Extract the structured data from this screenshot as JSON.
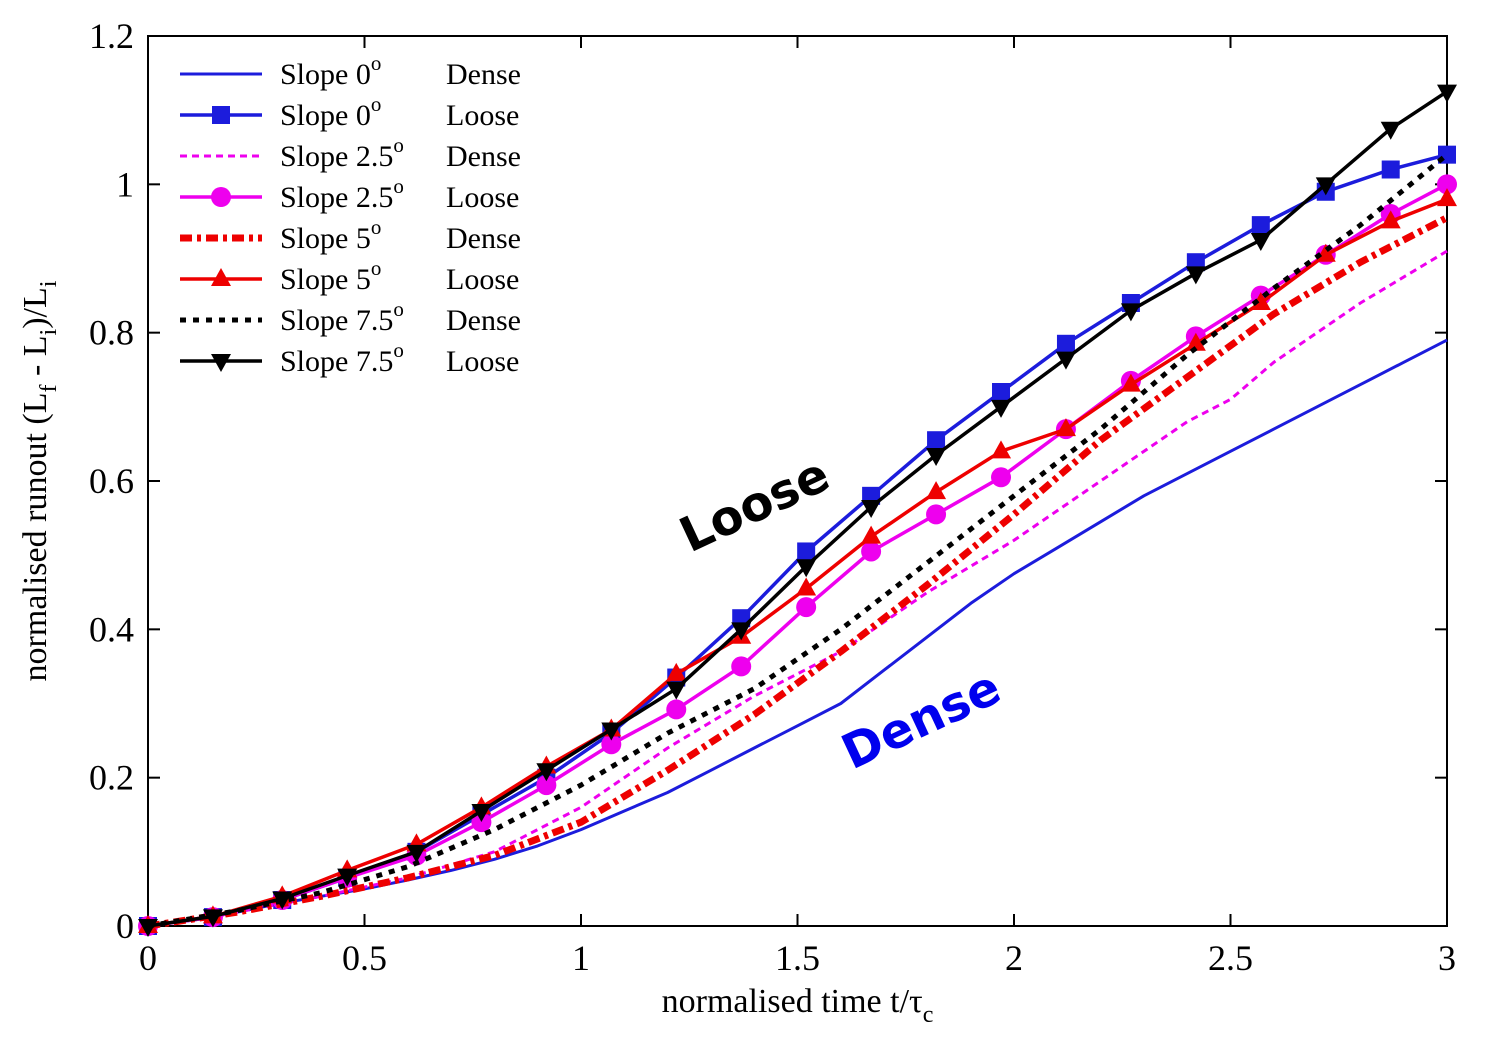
{
  "chart_data": {
    "type": "line",
    "xlabel": "normalised time t/τc",
    "ylabel": "normalised runout (Lf - Li)/Li",
    "xlim": [
      0,
      3
    ],
    "ylim": [
      0,
      1.2
    ],
    "x_ticks": [
      "0",
      "0.5",
      "1",
      "1.5",
      "2",
      "2.5",
      "3"
    ],
    "y_ticks": [
      "0",
      "0.2",
      "0.4",
      "0.6",
      "0.8",
      "1",
      "1.2"
    ],
    "grid": false,
    "legend_position": "top-left",
    "annotations": [
      {
        "text": "Loose",
        "color": "#000000"
      },
      {
        "text": "Dense",
        "color": "#0000ee"
      }
    ],
    "series": [
      {
        "name": "Slope 0o Dense",
        "legend": {
          "main": "Slope 0",
          "sup": "o",
          "suffix": "Dense"
        },
        "color": "#1c1cdc",
        "dash": "solid",
        "marker": "none",
        "width": 3,
        "x": [
          0,
          0.1,
          0.2,
          0.3,
          0.4,
          0.5,
          0.6,
          0.7,
          0.8,
          0.9,
          1.0,
          1.1,
          1.2,
          1.3,
          1.4,
          1.5,
          1.6,
          1.7,
          1.8,
          1.9,
          2.0,
          2.1,
          2.2,
          2.3,
          2.4,
          2.5,
          2.6,
          2.7,
          2.8,
          2.9,
          3.0
        ],
        "y": [
          0,
          0.008,
          0.018,
          0.03,
          0.04,
          0.05,
          0.062,
          0.075,
          0.09,
          0.108,
          0.13,
          0.155,
          0.18,
          0.21,
          0.24,
          0.27,
          0.3,
          0.345,
          0.39,
          0.435,
          0.475,
          0.51,
          0.545,
          0.58,
          0.61,
          0.64,
          0.67,
          0.7,
          0.73,
          0.76,
          0.79
        ]
      },
      {
        "name": "Slope 0o Loose",
        "legend": {
          "main": "Slope 0",
          "sup": "o",
          "suffix": "Loose"
        },
        "color": "#1c1cdc",
        "dash": "solid",
        "marker": "square",
        "width": 3.5,
        "x": [
          0,
          0.15,
          0.31,
          0.46,
          0.62,
          0.77,
          0.92,
          1.07,
          1.22,
          1.37,
          1.52,
          1.67,
          1.82,
          1.97,
          2.12,
          2.27,
          2.42,
          2.57,
          2.72,
          2.87,
          3.0
        ],
        "y": [
          0,
          0.012,
          0.035,
          0.065,
          0.1,
          0.15,
          0.2,
          0.26,
          0.335,
          0.415,
          0.505,
          0.58,
          0.655,
          0.72,
          0.785,
          0.84,
          0.895,
          0.945,
          0.99,
          1.02,
          1.04
        ]
      },
      {
        "name": "Slope 2.5o Dense",
        "legend": {
          "main": "Slope 2.5",
          "sup": "o",
          "suffix": "Dense"
        },
        "color": "#ee00ee",
        "dash": "dotted",
        "marker": "none",
        "width": 3,
        "x": [
          0,
          0.2,
          0.4,
          0.6,
          0.8,
          1.0,
          1.2,
          1.4,
          1.6,
          1.8,
          2.0,
          2.2,
          2.4,
          2.5,
          2.6,
          2.8,
          3.0
        ],
        "y": [
          0,
          0.018,
          0.04,
          0.065,
          0.1,
          0.16,
          0.24,
          0.31,
          0.37,
          0.45,
          0.52,
          0.6,
          0.68,
          0.71,
          0.76,
          0.84,
          0.91
        ]
      },
      {
        "name": "Slope 2.5o Loose",
        "legend": {
          "main": "Slope 2.5",
          "sup": "o",
          "suffix": "Loose"
        },
        "color": "#ee00ee",
        "dash": "solid",
        "marker": "circle",
        "width": 3.5,
        "x": [
          0,
          0.15,
          0.31,
          0.46,
          0.62,
          0.77,
          0.92,
          1.07,
          1.22,
          1.37,
          1.52,
          1.67,
          1.82,
          1.97,
          2.12,
          2.27,
          2.42,
          2.57,
          2.72,
          2.87,
          3.0
        ],
        "y": [
          0,
          0.012,
          0.035,
          0.065,
          0.095,
          0.14,
          0.19,
          0.245,
          0.292,
          0.35,
          0.43,
          0.505,
          0.555,
          0.605,
          0.67,
          0.735,
          0.795,
          0.85,
          0.905,
          0.96,
          1.0
        ]
      },
      {
        "name": "Slope 5o Dense",
        "legend": {
          "main": "Slope 5",
          "sup": "o",
          "suffix": "Dense"
        },
        "color": "#ee0000",
        "dash": "dashdot",
        "marker": "none",
        "width": 7,
        "x": [
          0,
          0.2,
          0.4,
          0.6,
          0.8,
          1.0,
          1.2,
          1.4,
          1.6,
          1.8,
          2.0,
          2.2,
          2.4,
          2.6,
          2.8,
          3.0
        ],
        "y": [
          0,
          0.018,
          0.04,
          0.065,
          0.095,
          0.14,
          0.21,
          0.285,
          0.37,
          0.46,
          0.555,
          0.655,
          0.74,
          0.825,
          0.895,
          0.955
        ]
      },
      {
        "name": "Slope 5o Loose",
        "legend": {
          "main": "Slope 5",
          "sup": "o",
          "suffix": "Loose"
        },
        "color": "#ee0000",
        "dash": "solid",
        "marker": "triangle-up",
        "width": 3.5,
        "x": [
          0,
          0.15,
          0.31,
          0.46,
          0.62,
          0.77,
          0.92,
          1.07,
          1.22,
          1.37,
          1.52,
          1.67,
          1.82,
          1.97,
          2.12,
          2.27,
          2.42,
          2.57,
          2.72,
          2.87,
          3.0
        ],
        "y": [
          0,
          0.013,
          0.04,
          0.075,
          0.11,
          0.16,
          0.215,
          0.265,
          0.34,
          0.39,
          0.455,
          0.525,
          0.585,
          0.64,
          0.67,
          0.73,
          0.785,
          0.84,
          0.905,
          0.95,
          0.98
        ]
      },
      {
        "name": "Slope 7.5o Dense",
        "legend": {
          "main": "Slope 7.5",
          "sup": "o",
          "suffix": "Dense"
        },
        "color": "#000000",
        "dash": "dotted-heavy",
        "marker": "none",
        "width": 5,
        "x": [
          0,
          0.2,
          0.4,
          0.6,
          0.8,
          1.0,
          1.2,
          1.4,
          1.6,
          1.8,
          2.0,
          2.2,
          2.4,
          2.6,
          2.8,
          3.0
        ],
        "y": [
          0,
          0.02,
          0.045,
          0.08,
          0.13,
          0.19,
          0.26,
          0.32,
          0.4,
          0.49,
          0.58,
          0.67,
          0.77,
          0.86,
          0.945,
          1.04
        ]
      },
      {
        "name": "Slope 7.5o Loose",
        "legend": {
          "main": "Slope 7.5",
          "sup": "o",
          "suffix": "Loose"
        },
        "color": "#000000",
        "dash": "solid",
        "marker": "triangle-down",
        "width": 3.5,
        "x": [
          0,
          0.15,
          0.31,
          0.46,
          0.62,
          0.77,
          0.92,
          1.07,
          1.22,
          1.37,
          1.52,
          1.67,
          1.82,
          1.97,
          2.12,
          2.27,
          2.42,
          2.57,
          2.72,
          2.87,
          3.0
        ],
        "y": [
          0,
          0.013,
          0.037,
          0.068,
          0.1,
          0.155,
          0.21,
          0.265,
          0.32,
          0.4,
          0.485,
          0.565,
          0.635,
          0.7,
          0.765,
          0.83,
          0.88,
          0.925,
          1.0,
          1.075,
          1.125
        ]
      }
    ]
  }
}
